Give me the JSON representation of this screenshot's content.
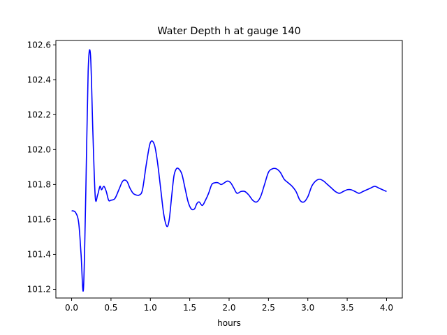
{
  "chart_data": {
    "type": "line",
    "title": "Water Depth h at gauge 140",
    "xlabel": "hours",
    "ylabel": "",
    "xlim": [
      -0.2,
      4.2
    ],
    "ylim": [
      101.15,
      102.625
    ],
    "grid": false,
    "line_color": "#0000ff",
    "x_ticks": [
      "0.0",
      "0.5",
      "1.0",
      "1.5",
      "2.0",
      "2.5",
      "3.0",
      "3.5",
      "4.0"
    ],
    "y_ticks": [
      "101.2",
      "101.4",
      "101.6",
      "101.8",
      "102.0",
      "102.2",
      "102.4",
      "102.6"
    ],
    "series": [
      {
        "x": [
          0.0,
          0.05,
          0.09,
          0.12,
          0.15,
          0.18,
          0.21,
          0.24,
          0.27,
          0.3,
          0.33,
          0.36,
          0.38,
          0.41,
          0.44,
          0.47,
          0.5,
          0.55,
          0.6,
          0.65,
          0.7,
          0.74,
          0.78,
          0.82,
          0.86,
          0.9,
          0.95,
          1.0,
          1.05,
          1.09,
          1.13,
          1.17,
          1.21,
          1.24,
          1.27,
          1.3,
          1.33,
          1.36,
          1.4,
          1.44,
          1.48,
          1.52,
          1.56,
          1.59,
          1.62,
          1.66,
          1.7,
          1.74,
          1.78,
          1.82,
          1.86,
          1.9,
          1.94,
          1.98,
          2.02,
          2.06,
          2.1,
          2.15,
          2.2,
          2.25,
          2.3,
          2.35,
          2.4,
          2.45,
          2.5,
          2.55,
          2.6,
          2.65,
          2.7,
          2.75,
          2.8,
          2.85,
          2.9,
          2.95,
          3.0,
          3.05,
          3.1,
          3.15,
          3.2,
          3.25,
          3.3,
          3.35,
          3.4,
          3.45,
          3.5,
          3.55,
          3.6,
          3.65,
          3.7,
          3.75,
          3.8,
          3.85,
          3.9,
          3.95,
          4.0
        ],
        "y": [
          101.65,
          101.64,
          101.58,
          101.4,
          101.2,
          101.75,
          102.45,
          102.54,
          102.1,
          101.73,
          101.74,
          101.79,
          101.77,
          101.79,
          101.76,
          101.71,
          101.71,
          101.72,
          101.77,
          101.82,
          101.82,
          101.78,
          101.75,
          101.74,
          101.74,
          101.77,
          101.92,
          102.04,
          102.03,
          101.93,
          101.78,
          101.63,
          101.56,
          101.6,
          101.73,
          101.85,
          101.89,
          101.89,
          101.86,
          101.78,
          101.7,
          101.66,
          101.66,
          101.69,
          101.7,
          101.68,
          101.71,
          101.75,
          101.8,
          101.81,
          101.81,
          101.8,
          101.81,
          101.82,
          101.81,
          101.78,
          101.75,
          101.76,
          101.76,
          101.74,
          101.71,
          101.7,
          101.73,
          101.8,
          101.87,
          101.89,
          101.89,
          101.87,
          101.83,
          101.81,
          101.79,
          101.76,
          101.71,
          101.7,
          101.73,
          101.79,
          101.82,
          101.83,
          101.82,
          101.8,
          101.78,
          101.76,
          101.75,
          101.76,
          101.77,
          101.77,
          101.76,
          101.75,
          101.76,
          101.77,
          101.78,
          101.79,
          101.78,
          101.77,
          101.76
        ]
      }
    ]
  }
}
